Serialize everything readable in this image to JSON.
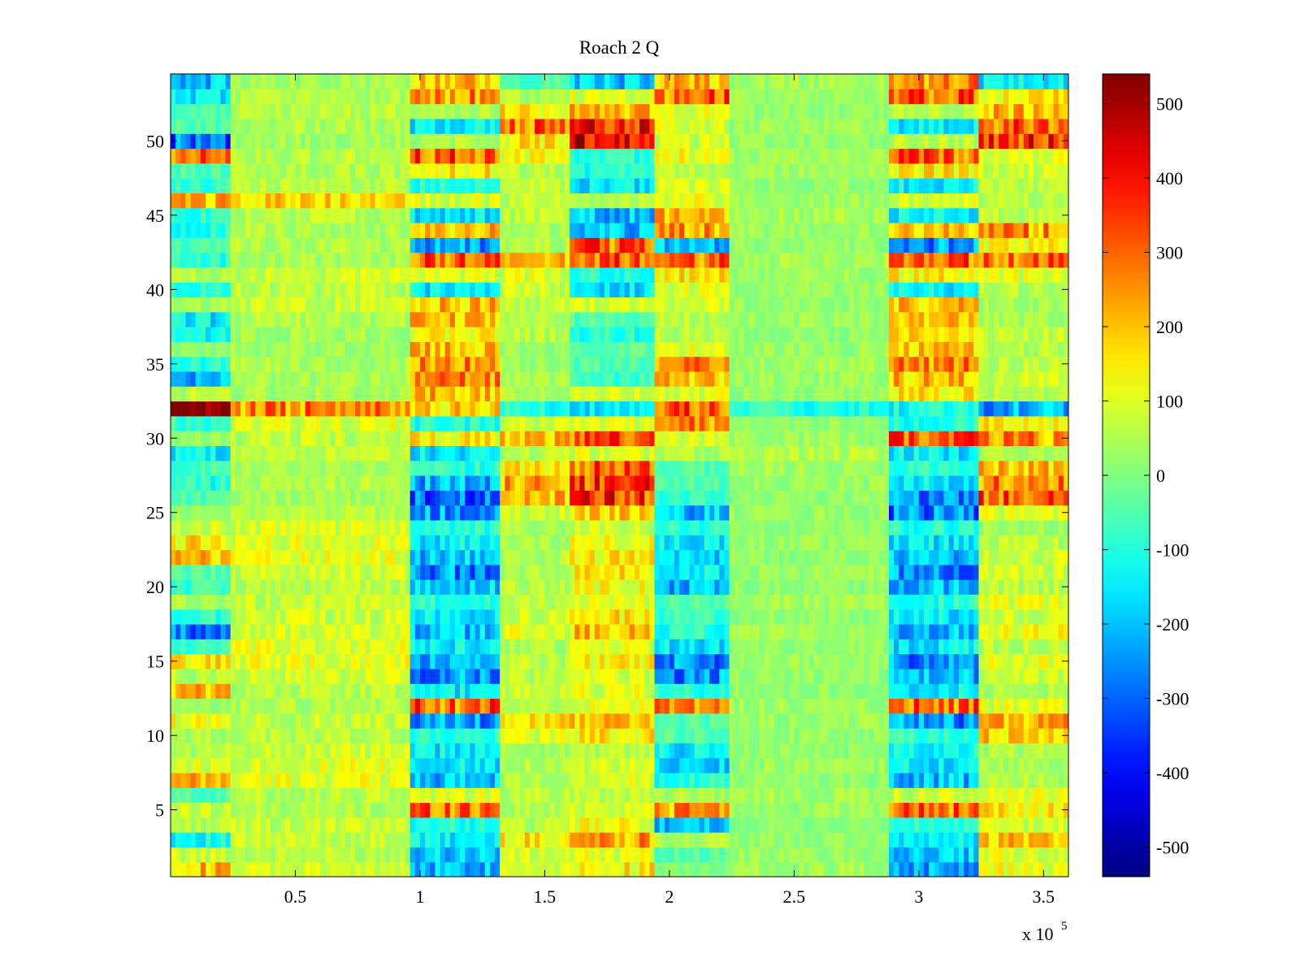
{
  "chart_data": {
    "type": "heatmap",
    "title": "Roach 2 Q",
    "xlabel": "",
    "ylabel": "",
    "x_exponent_label": "x 10",
    "x_exponent_power": "5",
    "xlim": [
      0,
      3.6
    ],
    "ylim": [
      0.5,
      54.5
    ],
    "x_ticks": [
      0.5,
      1,
      1.5,
      2,
      2.5,
      3,
      3.5
    ],
    "x_tick_labels": [
      "0.5",
      "1",
      "1.5",
      "2",
      "2.5",
      "3",
      "3.5"
    ],
    "y_ticks": [
      5,
      10,
      15,
      20,
      25,
      30,
      35,
      40,
      45,
      50
    ],
    "y_tick_labels": [
      "5",
      "10",
      "15",
      "20",
      "25",
      "30",
      "35",
      "40",
      "45",
      "50"
    ],
    "rows": 54,
    "colormap": "jet",
    "colorbar": {
      "limits": [
        -540,
        540
      ],
      "ticks": [
        500,
        400,
        300,
        200,
        100,
        0,
        -100,
        -200,
        -300,
        -400,
        -500
      ],
      "tick_labels": [
        "500",
        "400",
        "300",
        "200",
        "100",
        "0",
        "-100",
        "-200",
        "-300",
        "-400",
        "-500"
      ]
    },
    "segments_x_1e5": [
      [
        0,
        0.25
      ],
      [
        0.25,
        0.97
      ],
      [
        0.97,
        1.32
      ],
      [
        1.32,
        1.6
      ],
      [
        1.6,
        1.95
      ],
      [
        1.95,
        2.25
      ],
      [
        2.25,
        2.88
      ],
      [
        2.88,
        3.25
      ],
      [
        3.25,
        3.6
      ]
    ],
    "column_profile_note": "Approximate mean values per row for each segment",
    "row_segment_values": [
      [
        200,
        80,
        -200,
        100,
        150,
        0,
        40,
        -220,
        120
      ],
      [
        80,
        60,
        -180,
        80,
        100,
        -40,
        30,
        -200,
        100
      ],
      [
        -120,
        70,
        -150,
        150,
        250,
        50,
        20,
        -150,
        200
      ],
      [
        60,
        70,
        -100,
        60,
        120,
        -250,
        10,
        -100,
        80
      ],
      [
        80,
        50,
        300,
        50,
        100,
        250,
        30,
        300,
        150
      ],
      [
        -50,
        60,
        100,
        60,
        80,
        50,
        40,
        80,
        100
      ],
      [
        200,
        110,
        -200,
        50,
        100,
        -100,
        20,
        -200,
        60
      ],
      [
        100,
        100,
        -150,
        60,
        80,
        -200,
        30,
        -150,
        40
      ],
      [
        50,
        80,
        -150,
        40,
        60,
        -150,
        20,
        -120,
        50
      ],
      [
        50,
        60,
        -100,
        100,
        150,
        -50,
        20,
        -80,
        180
      ],
      [
        120,
        70,
        -250,
        150,
        200,
        -50,
        30,
        -250,
        220
      ],
      [
        20,
        50,
        300,
        50,
        100,
        250,
        30,
        300,
        100
      ],
      [
        200,
        60,
        -150,
        80,
        100,
        -100,
        20,
        -150,
        60
      ],
      [
        60,
        80,
        -250,
        60,
        90,
        -250,
        20,
        -220,
        80
      ],
      [
        150,
        110,
        -220,
        60,
        150,
        -250,
        30,
        -250,
        100
      ],
      [
        -80,
        100,
        -150,
        50,
        100,
        -150,
        20,
        -150,
        60
      ],
      [
        -300,
        90,
        -200,
        100,
        200,
        -100,
        30,
        -200,
        120
      ],
      [
        -100,
        80,
        -150,
        80,
        150,
        -80,
        20,
        -150,
        80
      ],
      [
        40,
        70,
        -100,
        60,
        100,
        -50,
        40,
        -100,
        100
      ],
      [
        -80,
        60,
        -200,
        60,
        120,
        -200,
        20,
        -200,
        60
      ],
      [
        -50,
        80,
        -250,
        50,
        150,
        -150,
        30,
        -250,
        80
      ],
      [
        200,
        110,
        -200,
        60,
        150,
        -200,
        20,
        -200,
        80
      ],
      [
        160,
        100,
        -150,
        50,
        120,
        -150,
        30,
        -150,
        60
      ],
      [
        80,
        90,
        -100,
        40,
        80,
        -100,
        20,
        -100,
        40
      ],
      [
        20,
        60,
        -250,
        80,
        200,
        -200,
        30,
        -280,
        100
      ],
      [
        -50,
        40,
        -300,
        200,
        350,
        -80,
        20,
        -250,
        300
      ],
      [
        -100,
        50,
        -220,
        220,
        330,
        -50,
        30,
        -150,
        280
      ],
      [
        -60,
        40,
        -100,
        150,
        300,
        -50,
        40,
        -100,
        200
      ],
      [
        -150,
        60,
        -150,
        60,
        100,
        50,
        60,
        -150,
        50
      ],
      [
        20,
        70,
        150,
        200,
        300,
        80,
        30,
        300,
        250
      ],
      [
        -80,
        100,
        -100,
        80,
        100,
        250,
        20,
        -100,
        150
      ],
      [
        540,
        260,
        180,
        -100,
        -150,
        300,
        -100,
        -120,
        -220
      ],
      [
        60,
        40,
        200,
        60,
        80,
        100,
        20,
        150,
        60
      ],
      [
        -200,
        40,
        250,
        40,
        -80,
        200,
        30,
        200,
        80
      ],
      [
        -100,
        50,
        250,
        30,
        -50,
        250,
        40,
        250,
        60
      ],
      [
        20,
        30,
        200,
        30,
        -30,
        100,
        30,
        200,
        60
      ],
      [
        -150,
        40,
        150,
        60,
        -100,
        60,
        20,
        150,
        80
      ],
      [
        -150,
        50,
        200,
        50,
        -50,
        60,
        30,
        200,
        40
      ],
      [
        40,
        80,
        200,
        60,
        100,
        80,
        20,
        200,
        40
      ],
      [
        -100,
        60,
        -150,
        80,
        -150,
        100,
        30,
        -150,
        60
      ],
      [
        60,
        80,
        100,
        100,
        -100,
        150,
        30,
        150,
        100
      ],
      [
        -100,
        40,
        300,
        200,
        300,
        300,
        40,
        300,
        300
      ],
      [
        -50,
        50,
        -250,
        50,
        300,
        -200,
        20,
        -250,
        150
      ],
      [
        -100,
        50,
        200,
        40,
        -200,
        250,
        30,
        200,
        250
      ],
      [
        -100,
        60,
        -150,
        60,
        -200,
        200,
        40,
        -150,
        60
      ],
      [
        200,
        180,
        100,
        60,
        50,
        120,
        30,
        100,
        60
      ],
      [
        -80,
        60,
        -100,
        80,
        -150,
        80,
        20,
        -150,
        60
      ],
      [
        -50,
        50,
        150,
        60,
        -100,
        60,
        40,
        150,
        80
      ],
      [
        280,
        60,
        300,
        120,
        -100,
        120,
        30,
        300,
        100
      ],
      [
        -300,
        40,
        50,
        150,
        450,
        80,
        20,
        60,
        350
      ],
      [
        -50,
        50,
        -150,
        300,
        400,
        100,
        30,
        -150,
        300
      ],
      [
        -60,
        60,
        50,
        150,
        200,
        100,
        20,
        60,
        200
      ],
      [
        -150,
        50,
        250,
        50,
        100,
        300,
        30,
        300,
        150
      ],
      [
        -200,
        40,
        200,
        -50,
        -200,
        200,
        40,
        250,
        -150
      ]
    ]
  }
}
